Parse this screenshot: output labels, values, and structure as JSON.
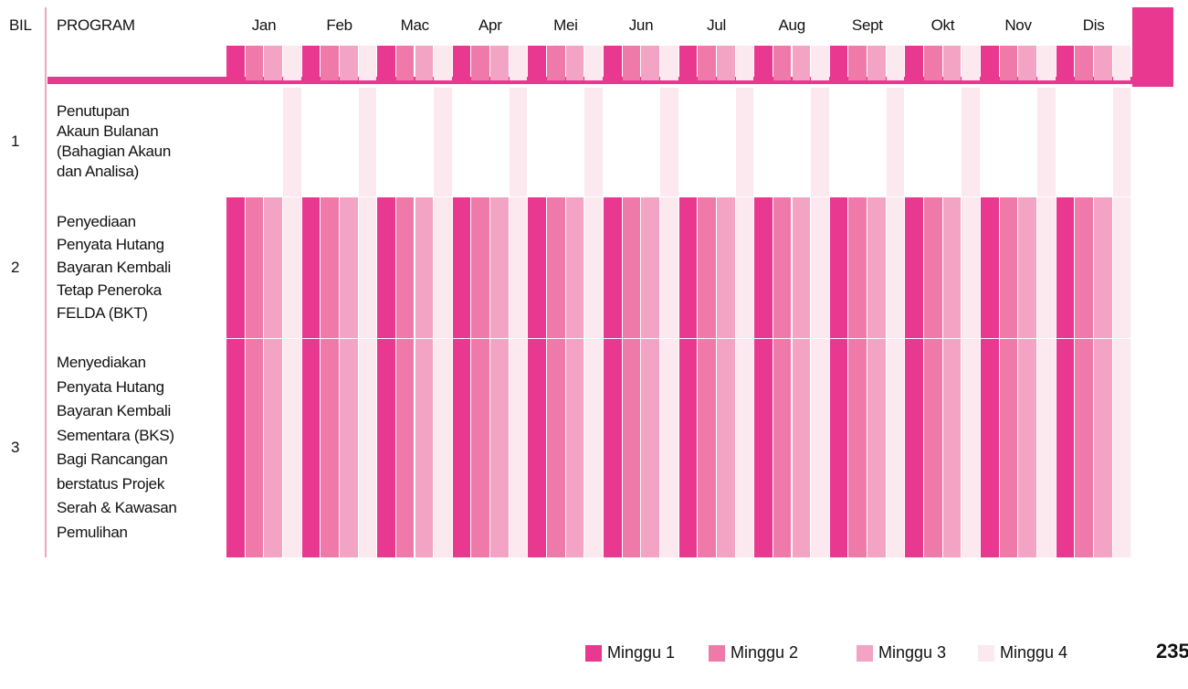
{
  "header": {
    "bil": "BIL",
    "program": "PROGRAM",
    "months": [
      "Jan",
      "Feb",
      "Mac",
      "Apr",
      "Mei",
      "Jun",
      "Jul",
      "Aug",
      "Sept",
      "Okt",
      "Nov",
      "Dis"
    ]
  },
  "legend": [
    {
      "label": "Minggu 1",
      "color": "#e8388f"
    },
    {
      "label": "Minggu 2",
      "color": "#ef7aaa"
    },
    {
      "label": "Minggu 3",
      "color": "#f3a3c3"
    },
    {
      "label": "Minggu 4",
      "color": "#fce8ef"
    }
  ],
  "rows": [
    {
      "bil": "1",
      "program": [
        "Penutupan",
        "Akaun Bulanan",
        "(Bahagian Akaun",
        "dan Analisa)"
      ],
      "weeks": [
        "Minggu 4"
      ]
    },
    {
      "bil": "2",
      "program": [
        "Penyediaan",
        "Penyata Hutang",
        "Bayaran Kembali",
        "Tetap Peneroka",
        "FELDA (BKT)"
      ],
      "weeks": [
        "Minggu 1",
        "Minggu 2",
        "Minggu 3",
        "Minggu 4"
      ]
    },
    {
      "bil": "3",
      "program": [
        "Menyediakan",
        "Penyata Hutang",
        "Bayaran Kembali",
        "Sementara (BKS)",
        "Bagi Rancangan",
        "berstatus Projek",
        "Serah & Kawasan",
        "Pemulihan"
      ],
      "weeks": [
        "Minggu 1",
        "Minggu 2",
        "Minggu 3",
        "Minggu 4"
      ]
    }
  ],
  "page_number": "235"
}
